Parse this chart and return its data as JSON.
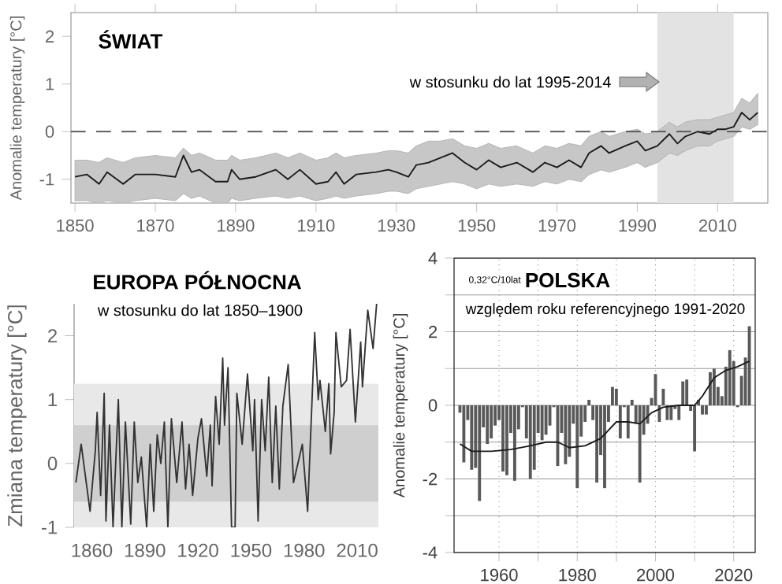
{
  "chart_data": [
    {
      "type": "line",
      "title": "ŚWIAT",
      "ylabel": "Anomalie temperatury [°C]",
      "annotations": [
        "w stosunku do lat 1995-2014"
      ],
      "series": [
        {
          "color": "#1a1a1a",
          "x": [
            1850,
            1853,
            1856,
            1858,
            1862,
            1865,
            1870,
            1875,
            1877,
            1879,
            1881,
            1885,
            1888,
            1889,
            1891,
            1895,
            1900,
            1903,
            1906,
            1910,
            1913,
            1915,
            1917,
            1920,
            1925,
            1928,
            1930,
            1933,
            1935,
            1938,
            1941,
            1944,
            1947,
            1950,
            1953,
            1956,
            1960,
            1964,
            1967,
            1970,
            1973,
            1976,
            1978,
            1981,
            1983,
            1987,
            1990,
            1992,
            1995,
            1998,
            2000,
            2002,
            2005,
            2008,
            2010,
            2012,
            2014,
            2016,
            2018,
            2020
          ],
          "values": [
            -0.95,
            -0.9,
            -1.1,
            -0.85,
            -1.1,
            -0.9,
            -0.9,
            -0.95,
            -0.5,
            -0.85,
            -0.8,
            -1.05,
            -1.05,
            -0.8,
            -1.0,
            -0.95,
            -0.8,
            -1.0,
            -0.8,
            -1.1,
            -1.05,
            -0.85,
            -1.1,
            -0.9,
            -0.85,
            -0.8,
            -0.85,
            -0.95,
            -0.7,
            -0.65,
            -0.55,
            -0.45,
            -0.65,
            -0.8,
            -0.6,
            -0.75,
            -0.65,
            -0.85,
            -0.65,
            -0.75,
            -0.6,
            -0.75,
            -0.45,
            -0.3,
            -0.45,
            -0.3,
            -0.2,
            -0.4,
            -0.3,
            -0.05,
            -0.25,
            -0.1,
            0.0,
            -0.05,
            0.05,
            0.05,
            0.1,
            0.4,
            0.25,
            0.4
          ],
          "lower": [
            -1.45,
            -1.45,
            -1.5,
            -1.45,
            -1.5,
            -1.45,
            -1.4,
            -1.45,
            -1.3,
            -1.4,
            -1.35,
            -1.5,
            -1.5,
            -1.4,
            -1.45,
            -1.4,
            -1.35,
            -1.4,
            -1.35,
            -1.45,
            -1.4,
            -1.35,
            -1.4,
            -1.35,
            -1.3,
            -1.25,
            -1.25,
            -1.3,
            -1.2,
            -1.15,
            -1.1,
            -1.05,
            -1.1,
            -1.2,
            -1.1,
            -1.15,
            -1.1,
            -1.15,
            -1.05,
            -1.1,
            -1.0,
            -1.05,
            -0.9,
            -0.8,
            -0.85,
            -0.75,
            -0.65,
            -0.75,
            -0.65,
            -0.45,
            -0.5,
            -0.4,
            -0.3,
            -0.3,
            -0.2,
            -0.15,
            -0.1,
            0.1,
            0.05,
            0.15
          ],
          "upper": [
            -0.6,
            -0.6,
            -0.65,
            -0.55,
            -0.65,
            -0.55,
            -0.5,
            -0.55,
            -0.35,
            -0.5,
            -0.45,
            -0.6,
            -0.6,
            -0.5,
            -0.6,
            -0.55,
            -0.45,
            -0.55,
            -0.45,
            -0.6,
            -0.55,
            -0.45,
            -0.55,
            -0.5,
            -0.45,
            -0.4,
            -0.4,
            -0.45,
            -0.3,
            -0.2,
            -0.2,
            -0.15,
            -0.3,
            -0.35,
            -0.25,
            -0.35,
            -0.3,
            -0.45,
            -0.3,
            -0.35,
            -0.25,
            -0.3,
            -0.1,
            0.0,
            -0.1,
            0.0,
            0.05,
            -0.05,
            0.0,
            0.2,
            0.1,
            0.2,
            0.25,
            0.25,
            0.3,
            0.35,
            0.4,
            0.7,
            0.6,
            0.8
          ]
        }
      ],
      "xlim": [
        1849,
        2022.5
      ],
      "ylim": [
        -1.5,
        2.5
      ],
      "xticks": [
        1850,
        1870,
        1890,
        1910,
        1930,
        1950,
        1970,
        1990,
        2010
      ],
      "yticks": [
        -1,
        0,
        1,
        2
      ],
      "ref_lines": [
        {
          "axis": "y",
          "value": 0,
          "line_style": "dashed",
          "color": "#555555"
        }
      ],
      "bands": [
        {
          "axis": "x",
          "from": 1995,
          "to": 2014,
          "color": "#e3e3e3"
        }
      ]
    },
    {
      "type": "line",
      "title": "EUROPA PÓŁNOCNA",
      "subtitle": "w stosunku do lat 1850–1900",
      "ylabel": "Zmiana temperatury [°C]",
      "color": "#333333",
      "x": [
        1851,
        1854,
        1859,
        1862,
        1863,
        1865,
        1867,
        1868,
        1870,
        1872,
        1875,
        1877,
        1879,
        1882,
        1884,
        1886,
        1888,
        1891,
        1893,
        1895,
        1897,
        1899,
        1901,
        1903,
        1905,
        1908,
        1911,
        1913,
        1915,
        1917,
        1920,
        1922,
        1925,
        1927,
        1928,
        1930,
        1932,
        1934,
        1935,
        1937,
        1939,
        1941,
        1942,
        1945,
        1948,
        1951,
        1952,
        1954,
        1956,
        1958,
        1960,
        1962,
        1964,
        1966,
        1968,
        1971,
        1974,
        1979,
        1982,
        1986,
        1988,
        1989,
        1992,
        1994,
        1995,
        1997,
        1998,
        2001,
        2004,
        2006,
        2009,
        2012,
        2013,
        2016,
        2019,
        2021
      ],
      "values": [
        -0.3,
        0.3,
        -0.75,
        0.2,
        0.8,
        -0.5,
        1.1,
        -0.9,
        0.6,
        -1.0,
        1.0,
        -1.0,
        0.65,
        -0.95,
        0.65,
        -0.3,
        0.1,
        -1.0,
        0.3,
        -0.75,
        0.45,
        0.0,
        0.65,
        -1.0,
        0.7,
        -0.3,
        0.65,
        -0.4,
        0.3,
        -0.5,
        0.4,
        0.7,
        -0.2,
        0.6,
        -0.35,
        1.05,
        0.3,
        1.65,
        0.6,
        1.5,
        -1.0,
        -1.0,
        1.1,
        0.3,
        1.4,
        0.2,
        1.0,
        -0.9,
        1.0,
        0.2,
        1.35,
        -0.3,
        0.9,
        -0.4,
        0.9,
        1.55,
        -0.3,
        0.3,
        -0.75,
        2.05,
        1.0,
        1.3,
        0.5,
        1.25,
        0.15,
        0.8,
        2.05,
        1.2,
        1.3,
        2.1,
        0.65,
        1.9,
        1.2,
        2.4,
        1.8,
        2.5
      ],
      "xlim": [
        1850,
        2022
      ],
      "ylim": [
        -1,
        2.5
      ],
      "xticks": [
        1860,
        1890,
        1920,
        1950,
        1980,
        2010
      ],
      "yticks": [
        -1,
        0,
        1,
        2
      ],
      "bands": [
        {
          "axis": "y",
          "from": -1,
          "to": 1.25,
          "color": "#e8e8e8"
        },
        {
          "axis": "y",
          "from": -0.6,
          "to": 0.6,
          "color": "#cfcfcf"
        }
      ]
    },
    {
      "type": "bar",
      "title": "POLSKA",
      "subtitle": "względem roku referencyjnego 1991-2020",
      "ylabel": "Anomalie temperatury [°C]",
      "annotations": [
        "0,32°C/10lat"
      ],
      "x": [
        1950,
        1951,
        1952,
        1953,
        1954,
        1955,
        1956,
        1957,
        1958,
        1959,
        1960,
        1961,
        1962,
        1963,
        1964,
        1965,
        1966,
        1967,
        1968,
        1969,
        1970,
        1971,
        1972,
        1973,
        1974,
        1975,
        1976,
        1977,
        1978,
        1979,
        1980,
        1981,
        1982,
        1983,
        1984,
        1985,
        1986,
        1987,
        1988,
        1989,
        1990,
        1991,
        1992,
        1993,
        1994,
        1995,
        1996,
        1997,
        1998,
        1999,
        2000,
        2001,
        2002,
        2003,
        2004,
        2005,
        2006,
        2007,
        2008,
        2009,
        2010,
        2011,
        2012,
        2013,
        2014,
        2015,
        2016,
        2017,
        2018,
        2019,
        2020,
        2021,
        2022,
        2023,
        2024
      ],
      "series": [
        {
          "type": "bar",
          "color": "#595959",
          "values": [
            -0.2,
            -1.55,
            -0.4,
            -1.75,
            -1.7,
            -2.6,
            -0.6,
            -1.05,
            -0.9,
            -0.55,
            -0.4,
            -1.8,
            -1.9,
            -0.75,
            -2.05,
            -0.65,
            -0.05,
            -0.9,
            -2.0,
            -1.75,
            -0.75,
            -0.95,
            -0.8,
            -0.55,
            -0.05,
            -1.65,
            -0.75,
            -1.6,
            -1.4,
            -0.5,
            -2.25,
            -0.85,
            -0.45,
            0.15,
            -0.4,
            -2.1,
            -1.35,
            -2.25,
            -0.45,
            0.5,
            0.45,
            -0.9,
            -0.05,
            -0.9,
            0.15,
            -0.5,
            -2.1,
            -0.8,
            -0.5,
            0.2,
            0.85,
            -0.45,
            0.45,
            -0.4,
            -0.4,
            -0.1,
            -0.4,
            0.65,
            0.7,
            -0.15,
            -1.25,
            0.15,
            -0.25,
            -0.25,
            0.9,
            1.0,
            0.5,
            0.25,
            1.05,
            1.5,
            1.2,
            -0.05,
            0.8,
            1.3,
            2.15
          ]
        },
        {
          "type": "line",
          "color": "#1a1a1a",
          "x": [
            1950,
            1953,
            1958,
            1963,
            1968,
            1972,
            1975,
            1978,
            1982,
            1986,
            1990,
            1993,
            1996,
            1999,
            2002,
            2006,
            2010,
            2012,
            2015,
            2018,
            2021,
            2024
          ],
          "values": [
            -1.05,
            -1.25,
            -1.25,
            -1.2,
            -1.1,
            -1.0,
            -1.0,
            -1.15,
            -1.1,
            -0.9,
            -0.45,
            -0.45,
            -0.5,
            -0.2,
            -0.05,
            0.0,
            0.0,
            0.25,
            0.75,
            0.95,
            1.05,
            1.2
          ]
        }
      ],
      "xlim": [
        1948.5,
        2025.5
      ],
      "ylim": [
        -4,
        4
      ],
      "xticks": [
        1960,
        {
          "value": 1970,
          "label": null
        },
        1980,
        {
          "value": 1990,
          "label": null
        },
        2000,
        {
          "value": 2010,
          "label": null
        },
        2020
      ],
      "yticks": [
        -4,
        {
          "value": -3,
          "label": null
        },
        -2,
        {
          "value": -1,
          "label": null
        },
        0,
        {
          "value": 1,
          "label": null
        },
        2,
        {
          "value": 3,
          "label": null
        },
        4
      ],
      "grid": true
    }
  ]
}
